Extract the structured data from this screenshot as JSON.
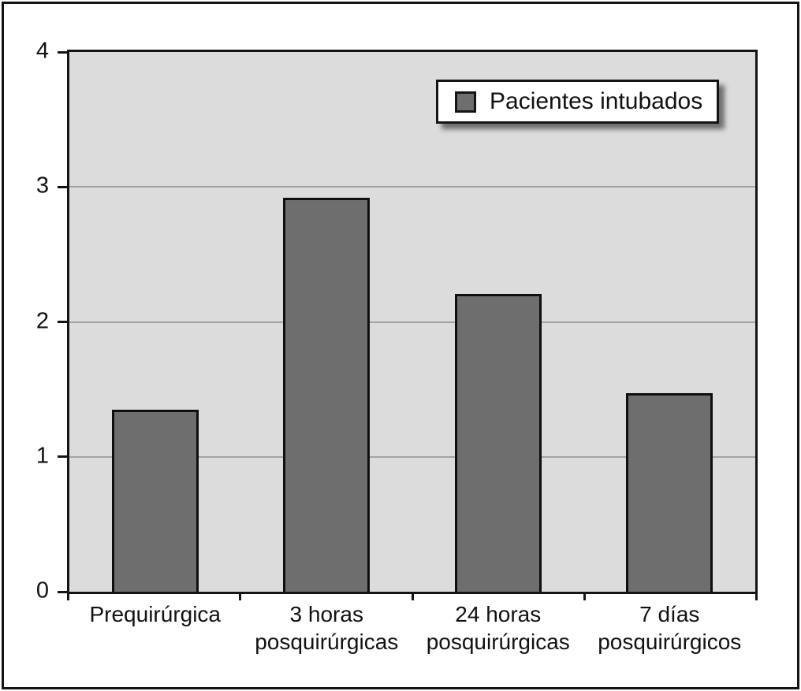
{
  "chart_data": {
    "type": "bar",
    "categories": [
      {
        "label": "Prequirúrgica",
        "lines": [
          "Prequirúrgica"
        ]
      },
      {
        "label": "3 horas posquirúrgicas",
        "lines": [
          "3 horas",
          "posquirúrgicas"
        ]
      },
      {
        "label": "24 horas posquirúrgicas",
        "lines": [
          "24 horas",
          "posquirúrgicas"
        ]
      },
      {
        "label": "7 días posquirúrgicos",
        "lines": [
          "7 días",
          "posquirúrgicos"
        ]
      }
    ],
    "values": [
      1.35,
      2.92,
      2.21,
      1.47
    ],
    "series_name": "Pacientes intubados",
    "legend_label": "Pacientes intubados",
    "legend_position": "top-right",
    "title": "",
    "xlabel": "",
    "ylabel": "",
    "ylim": [
      0,
      4
    ],
    "yticks": [
      0,
      1,
      2,
      3,
      4
    ],
    "ytick_labels": [
      "0",
      "1",
      "2",
      "3",
      "4"
    ],
    "grid": "horizontal-at-1-2-3",
    "colors": {
      "bar_fill": "#6e6e6e",
      "bar_border": "#0f0f0f",
      "plot_bg": "#dcdcdc",
      "gridline": "#a3a3a3",
      "axis": "#141414",
      "legend_bg": "#ffffff",
      "text": "#111111"
    }
  }
}
